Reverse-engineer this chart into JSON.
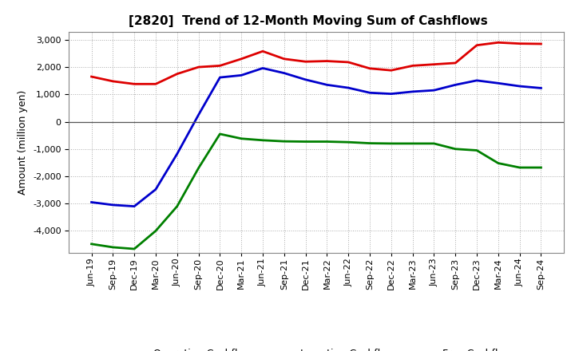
{
  "title": "[2820]  Trend of 12-Month Moving Sum of Cashflows",
  "ylabel": "Amount (million yen)",
  "x_labels": [
    "Jun-19",
    "Sep-19",
    "Dec-19",
    "Mar-20",
    "Jun-20",
    "Sep-20",
    "Dec-20",
    "Mar-21",
    "Jun-21",
    "Sep-21",
    "Dec-21",
    "Mar-22",
    "Jun-22",
    "Sep-22",
    "Dec-22",
    "Mar-23",
    "Jun-23",
    "Sep-23",
    "Dec-23",
    "Mar-24",
    "Jun-24",
    "Sep-24"
  ],
  "operating": [
    1650,
    1480,
    1380,
    1380,
    1750,
    2000,
    2050,
    2300,
    2580,
    2300,
    2200,
    2220,
    2180,
    1950,
    1880,
    2050,
    2100,
    2150,
    2800,
    2900,
    2860,
    2850
  ],
  "investing": [
    -4480,
    -4600,
    -4660,
    -4000,
    -3100,
    -1700,
    -450,
    -620,
    -680,
    -720,
    -730,
    -730,
    -750,
    -790,
    -800,
    -800,
    -800,
    -1000,
    -1050,
    -1520,
    -1680,
    -1680
  ],
  "free": [
    -2950,
    -3050,
    -3100,
    -2480,
    -1180,
    250,
    1620,
    1700,
    1960,
    1780,
    1540,
    1350,
    1240,
    1060,
    1020,
    1100,
    1150,
    1350,
    1510,
    1410,
    1300,
    1230
  ],
  "operating_color": "#dd0000",
  "investing_color": "#008000",
  "free_color": "#0000cc",
  "ylim": [
    -4800,
    3300
  ],
  "yticks": [
    -4000,
    -3000,
    -2000,
    -1000,
    0,
    1000,
    2000,
    3000
  ],
  "bg_color": "#ffffff",
  "grid_color": "#aaaaaa",
  "line_width": 2.0,
  "title_fontsize": 11,
  "legend_fontsize": 9,
  "tick_fontsize": 8,
  "ylabel_fontsize": 9
}
